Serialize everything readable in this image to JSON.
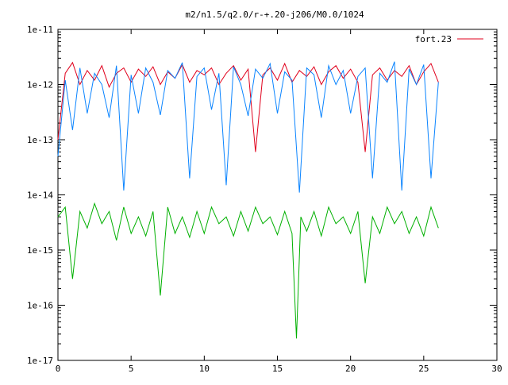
{
  "chart_data": {
    "type": "line",
    "title": "m2/n1.5/q2.0/r-+.20-j206/M0.0/1024",
    "xlabel": "",
    "ylabel": "",
    "xlim": [
      0,
      30
    ],
    "ylim": [
      1e-17,
      1e-11
    ],
    "yscale": "log",
    "grid": false,
    "legend": "top-right",
    "x_ticks": [
      "0",
      "5",
      "10",
      "15",
      "20",
      "25",
      "30"
    ],
    "y_ticks": [
      "1e-17",
      "1e-16",
      "1e-15",
      "1e-14",
      "1e-13",
      "1e-12",
      "1e-11"
    ],
    "series": [
      {
        "name": "fort.23",
        "color": "#e0001c",
        "x": [
          0,
          0.5,
          1,
          1.5,
          2,
          2.5,
          3,
          3.5,
          4,
          4.5,
          5,
          5.5,
          6,
          6.5,
          7,
          7.5,
          8,
          8.5,
          9,
          9.5,
          10,
          10.5,
          11,
          11.5,
          12,
          12.5,
          13,
          13.5,
          14,
          14.5,
          15,
          15.5,
          16,
          16.5,
          17,
          17.5,
          18,
          18.5,
          19,
          19.5,
          20,
          20.5,
          21,
          21.5,
          22,
          22.5,
          23,
          23.5,
          24,
          24.5,
          25,
          25.5,
          26
        ],
        "y": [
          1e-13,
          1.6e-12,
          2.5e-12,
          1e-12,
          1.8e-12,
          1.2e-12,
          2.2e-12,
          9e-13,
          1.6e-12,
          2e-12,
          1.1e-12,
          1.9e-12,
          1.4e-12,
          2.1e-12,
          1e-12,
          1.7e-12,
          1.3e-12,
          2.3e-12,
          1.1e-12,
          1.8e-12,
          1.5e-12,
          2e-12,
          1e-12,
          1.6e-12,
          2.2e-12,
          1.2e-12,
          1.9e-12,
          6e-14,
          1.5e-12,
          2e-12,
          1.2e-12,
          2.4e-12,
          1.1e-12,
          1.8e-12,
          1.4e-12,
          2.1e-12,
          1e-12,
          1.7e-12,
          2.2e-12,
          1.3e-12,
          1.9e-12,
          1.1e-12,
          6e-14,
          1.5e-12,
          2e-12,
          1.2e-12,
          1.8e-12,
          1.4e-12,
          2.2e-12,
          1e-12,
          1.7e-12,
          2.4e-12,
          1.1e-12
        ]
      },
      {
        "name": "",
        "color": "#0a84ff",
        "x": [
          0,
          0.5,
          1,
          1.5,
          2,
          2.5,
          3,
          3.5,
          4,
          4.5,
          5,
          5.5,
          6,
          6.5,
          7,
          7.5,
          8,
          8.5,
          9,
          9.5,
          10,
          10.5,
          11,
          11.5,
          12,
          12.5,
          13,
          13.5,
          14,
          14.5,
          15,
          15.5,
          16,
          16.5,
          17,
          17.5,
          18,
          18.5,
          19,
          19.5,
          20,
          20.5,
          21,
          21.5,
          22,
          22.5,
          23,
          23.5,
          24,
          24.5,
          25,
          25.5,
          26
        ],
        "y": [
          5e-14,
          1.2e-12,
          1.5e-13,
          2e-12,
          3e-13,
          1.6e-12,
          1e-12,
          2.5e-13,
          2.2e-12,
          1.2e-14,
          1.5e-12,
          3e-13,
          2e-12,
          1.1e-12,
          2.8e-13,
          1.8e-12,
          1.3e-12,
          2.5e-12,
          2e-14,
          1.4e-12,
          2e-12,
          3.5e-13,
          1.6e-12,
          1.5e-14,
          2.1e-12,
          1e-12,
          2.7e-13,
          1.9e-12,
          1.3e-12,
          2.4e-12,
          3e-13,
          1.7e-12,
          1.2e-12,
          1.1e-14,
          2e-12,
          1.5e-12,
          2.5e-13,
          2.2e-12,
          1e-12,
          1.8e-12,
          3e-13,
          1.4e-12,
          2e-12,
          2e-14,
          1.6e-12,
          1.1e-12,
          2.6e-12,
          1.2e-14,
          1.9e-12,
          1e-12,
          2.3e-12,
          2e-14,
          1.1e-12
        ]
      },
      {
        "name": "",
        "color": "#00b000",
        "x": [
          0,
          0.5,
          1,
          1.5,
          2,
          2.5,
          3,
          3.5,
          4,
          4.5,
          5,
          5.5,
          6,
          6.5,
          7,
          7.5,
          8,
          8.5,
          9,
          9.5,
          10,
          10.5,
          11,
          11.5,
          12,
          12.5,
          13,
          13.5,
          14,
          14.5,
          15,
          15.5,
          16,
          16.3,
          16.6,
          17,
          17.5,
          18,
          18.5,
          19,
          19.5,
          20,
          20.5,
          21,
          21.5,
          22,
          22.5,
          23,
          23.5,
          24,
          24.5,
          25,
          25.5,
          26
        ],
        "y": [
          4e-15,
          6e-15,
          3e-16,
          5e-15,
          2.5e-15,
          7e-15,
          3e-15,
          5e-15,
          1.5e-15,
          6e-15,
          2e-15,
          4e-15,
          1.8e-15,
          5e-15,
          1.5e-16,
          6e-15,
          2e-15,
          4e-15,
          1.7e-15,
          5e-15,
          2e-15,
          6e-15,
          3e-15,
          4e-15,
          1.8e-15,
          5e-15,
          2.2e-15,
          6e-15,
          3e-15,
          4e-15,
          1.9e-15,
          5e-15,
          2e-15,
          2.5e-17,
          4e-15,
          2.2e-15,
          5e-15,
          1.8e-15,
          6e-15,
          3e-15,
          4e-15,
          2e-15,
          5e-15,
          2.5e-16,
          4e-15,
          2e-15,
          6e-15,
          3e-15,
          5e-15,
          2e-15,
          4e-15,
          1.8e-15,
          6e-15,
          2.5e-15
        ]
      }
    ]
  }
}
